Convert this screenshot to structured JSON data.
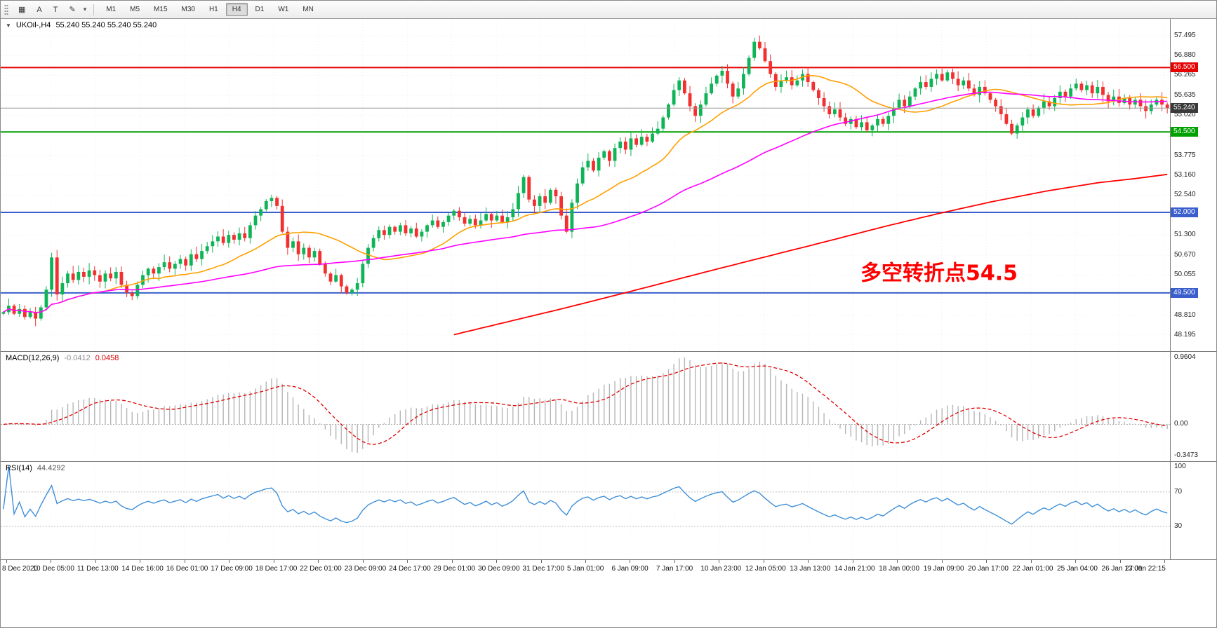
{
  "icons": {
    "symbol_dropdown": "▼"
  },
  "toolbar": {
    "icons": [
      {
        "name": "charts-grid-icon",
        "glyph": "▦"
      },
      {
        "name": "cursor-tool-icon",
        "glyph": "A"
      },
      {
        "name": "text-tool-icon",
        "glyph": "T"
      },
      {
        "name": "draw-tool-icon",
        "glyph": "✎"
      }
    ],
    "dropdown_caret": "▾",
    "timeframes": [
      "M1",
      "M5",
      "M15",
      "M30",
      "H1",
      "H4",
      "D1",
      "W1",
      "MN"
    ],
    "active_timeframe": "H4"
  },
  "chart_data": {
    "type": "candlestick",
    "symbol": "UKOil-,H4",
    "ohlc_text": "55.240 55.240 55.240 55.240",
    "annotation": {
      "text": "多空转折点54.5",
      "color": "#ff0000"
    },
    "price_scale_ticks": [
      "57.495",
      "56.880",
      "56.265",
      "55.635",
      "55.020",
      "54.400",
      "53.775",
      "53.160",
      "52.540",
      "51.925",
      "51.300",
      "50.670",
      "50.055",
      "49.430",
      "48.810",
      "48.195"
    ],
    "price_range": {
      "min": 47.95,
      "max": 57.75
    },
    "current_price": "55.240",
    "current_price_color": "#3a3a3a",
    "horizontal_lines": [
      {
        "price": 56.5,
        "label": "56.500",
        "color": "#e60000"
      },
      {
        "price": 54.5,
        "label": "54.500",
        "color": "#00a000"
      },
      {
        "price": 52.0,
        "label": "52.000",
        "color": "#3a5fcd"
      },
      {
        "price": 49.5,
        "label": "49.500",
        "color": "#3a5fcd"
      }
    ],
    "candles": {
      "up_color": "#0fb457",
      "down_color": "#f23030",
      "first_open": 48.85,
      "closes": [
        48.9,
        49.1,
        48.85,
        49.0,
        48.75,
        48.9,
        48.7,
        49.05,
        49.6,
        50.6,
        49.45,
        49.8,
        50.1,
        49.9,
        50.15,
        50.0,
        50.2,
        50.05,
        49.85,
        50.1,
        49.95,
        50.15,
        49.75,
        49.5,
        49.4,
        49.75,
        50.05,
        50.25,
        50.1,
        50.3,
        50.45,
        50.25,
        50.4,
        50.55,
        50.35,
        50.7,
        50.55,
        50.8,
        50.95,
        51.1,
        51.25,
        51.05,
        51.3,
        51.15,
        51.35,
        51.2,
        51.6,
        51.9,
        52.1,
        52.35,
        52.45,
        52.2,
        51.4,
        50.9,
        51.1,
        50.7,
        50.9,
        50.6,
        50.8,
        50.4,
        50.1,
        49.85,
        50.05,
        49.7,
        49.5,
        49.6,
        49.8,
        50.4,
        50.9,
        51.2,
        51.45,
        51.3,
        51.55,
        51.4,
        51.6,
        51.35,
        51.5,
        51.25,
        51.4,
        51.6,
        51.75,
        51.55,
        51.7,
        51.9,
        52.05,
        51.85,
        51.65,
        51.8,
        51.6,
        51.75,
        51.95,
        51.75,
        51.9,
        51.7,
        51.85,
        52.1,
        52.6,
        53.1,
        52.4,
        52.2,
        52.5,
        52.3,
        52.7,
        52.5,
        51.9,
        51.4,
        52.3,
        52.9,
        53.4,
        53.6,
        53.3,
        53.7,
        53.9,
        53.6,
        54.0,
        54.2,
        53.95,
        54.3,
        54.1,
        54.35,
        54.2,
        54.45,
        54.6,
        54.95,
        55.35,
        55.8,
        56.1,
        55.7,
        55.3,
        55.0,
        55.35,
        55.7,
        56.0,
        56.25,
        56.4,
        56.0,
        55.6,
        55.85,
        56.3,
        56.8,
        57.3,
        57.1,
        56.7,
        56.3,
        55.9,
        56.1,
        56.2,
        55.95,
        56.1,
        56.3,
        56.05,
        55.8,
        55.55,
        55.3,
        55.05,
        55.2,
        54.95,
        54.75,
        54.9,
        54.65,
        54.8,
        54.55,
        54.7,
        54.9,
        54.75,
        55.0,
        55.25,
        55.5,
        55.3,
        55.6,
        55.85,
        56.05,
        55.9,
        56.15,
        56.3,
        56.1,
        56.35,
        56.15,
        55.95,
        56.1,
        55.85,
        55.65,
        55.9,
        55.7,
        55.5,
        55.3,
        55.05,
        54.75,
        54.45,
        54.7,
        54.95,
        55.2,
        55.0,
        55.25,
        55.45,
        55.3,
        55.55,
        55.75,
        55.6,
        55.85,
        56.0,
        55.8,
        55.95,
        55.7,
        55.9,
        55.65,
        55.45,
        55.6,
        55.4,
        55.55,
        55.35,
        55.5,
        55.3,
        55.15,
        55.35,
        55.5,
        55.35,
        55.24
      ]
    },
    "moving_averages": {
      "fast": {
        "period": 20,
        "color": "#ff9f00"
      },
      "medium": {
        "period": 60,
        "color": "#ff00ff"
      },
      "slow": {
        "color": "#ff0000",
        "points": [
          [
            84,
            48.2
          ],
          [
            94,
            48.6
          ],
          [
            104,
            49.0
          ],
          [
            114,
            49.42
          ],
          [
            124,
            49.85
          ],
          [
            134,
            50.28
          ],
          [
            144,
            50.7
          ],
          [
            154,
            51.12
          ],
          [
            164,
            51.55
          ],
          [
            174,
            51.95
          ],
          [
            184,
            52.32
          ],
          [
            194,
            52.65
          ],
          [
            204,
            52.92
          ],
          [
            211,
            53.05
          ],
          [
            217,
            53.18
          ]
        ]
      }
    },
    "macd": {
      "label": "MACD(12,26,9)",
      "value_main": "-0.0412",
      "value_signal": "0.0458",
      "fast": 12,
      "slow": 26,
      "signal": 9,
      "histogram_color": "#b6b6b6",
      "signal_color": "#e00000",
      "scale_top": "0.9604",
      "scale_zero": "0.00",
      "scale_bottom": "-0.3473"
    },
    "rsi": {
      "label": "RSI(14)",
      "value": "44.4292",
      "period": 14,
      "line_color": "#3f8fd8",
      "levels": [
        70,
        30
      ],
      "scale_labels": [
        "100",
        "70",
        "30"
      ]
    },
    "time_labels": [
      "8 Dec 2020",
      "10 Dec 05:00",
      "11 Dec 13:00",
      "14 Dec 16:00",
      "16 Dec 01:00",
      "17 Dec 09:00",
      "18 Dec 17:00",
      "22 Dec 01:00",
      "23 Dec 09:00",
      "24 Dec 17:00",
      "29 Dec 01:00",
      "30 Dec 09:00",
      "31 Dec 17:00",
      "5 Jan 01:00",
      "6 Jan 09:00",
      "7 Jan 17:00",
      "10 Jan 23:00",
      "12 Jan 05:00",
      "13 Jan 13:00",
      "14 Jan 21:00",
      "18 Jan 00:00",
      "19 Jan 09:00",
      "20 Jan 17:00",
      "22 Jan 01:00",
      "25 Jan 04:00",
      "26 Jan 13:00",
      "27 Jan 22:15"
    ]
  }
}
